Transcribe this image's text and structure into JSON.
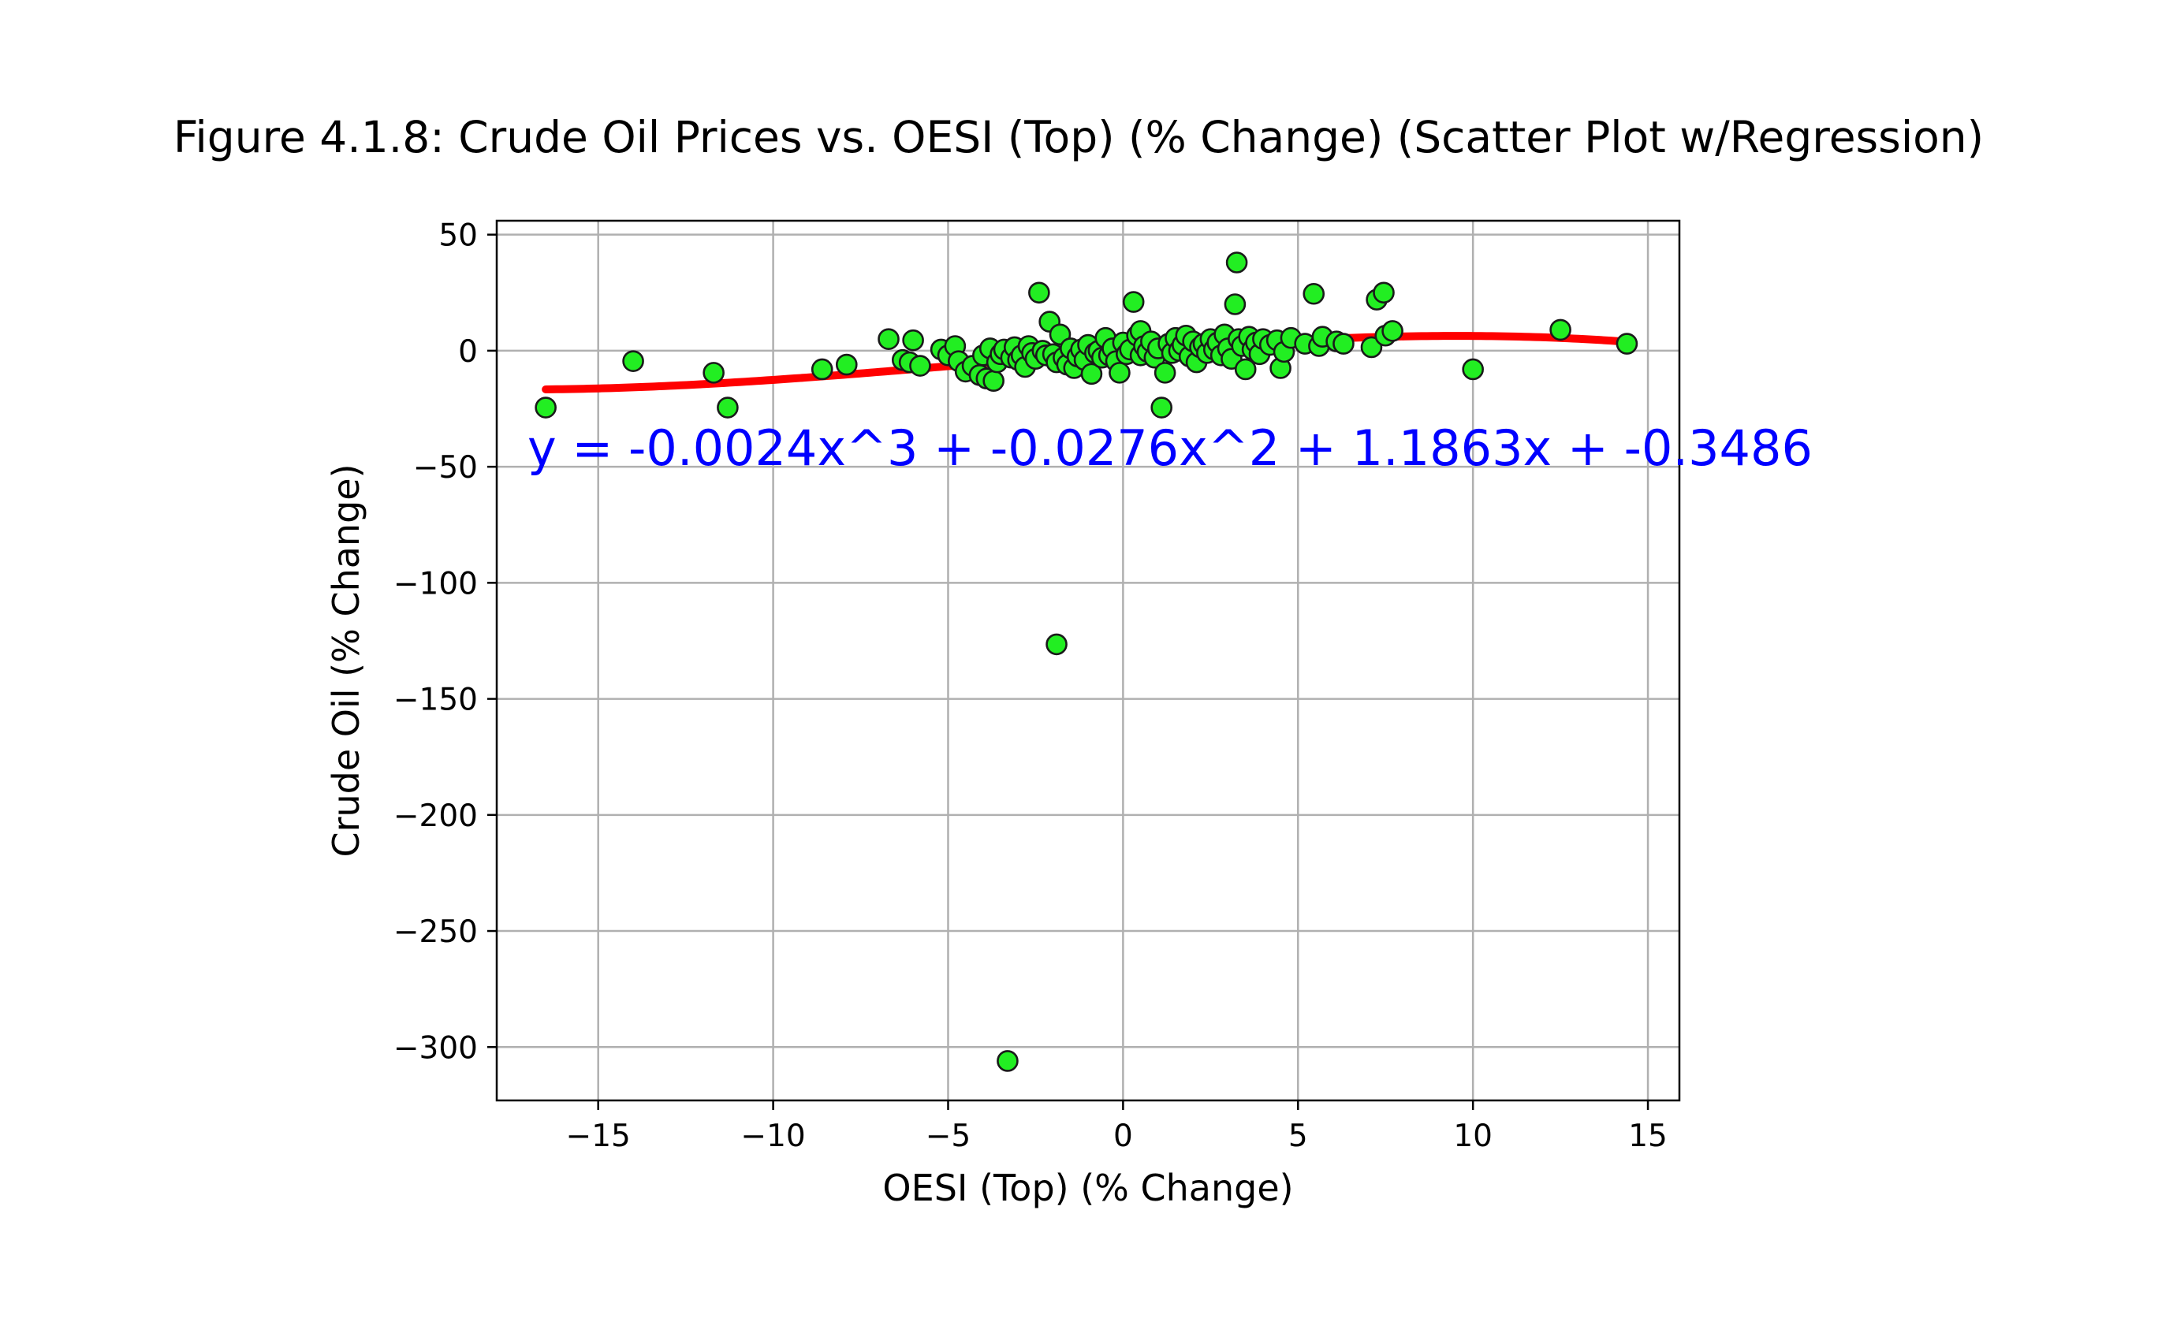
{
  "chart_data": {
    "type": "scatter",
    "title": "Figure 4.1.8: Crude Oil Prices vs. OESI (Top) (% Change) (Scatter Plot w/Regression)",
    "xlabel": "OESI (Top) (% Change)",
    "ylabel": "Crude Oil (% Change)",
    "xlim": [
      -17.9,
      15.9
    ],
    "ylim": [
      -323,
      56
    ],
    "xticks": [
      -15,
      -10,
      -5,
      0,
      5,
      10,
      15
    ],
    "yticks": [
      50,
      0,
      -50,
      -100,
      -150,
      -200,
      -250,
      -300
    ],
    "grid": true,
    "regression": {
      "equation": "y = -0.0024x^3 + -0.0276x^2 + 1.1863x + -0.3486",
      "coefficients": [
        -0.0024,
        -0.0276,
        1.1863,
        -0.3486
      ],
      "x_range": [
        -16.5,
        14.4
      ],
      "color": "#ff0000"
    },
    "marker_color": "#22ee22",
    "series": [
      {
        "points": [
          [
            -16.5,
            -24.5
          ],
          [
            -14.0,
            -4.5
          ],
          [
            -11.7,
            -9.5
          ],
          [
            -11.3,
            -24.5
          ],
          [
            -8.6,
            -8.0
          ],
          [
            -7.9,
            -6.0
          ],
          [
            -6.7,
            5.0
          ],
          [
            -6.3,
            -4.0
          ],
          [
            -6.1,
            -5.0
          ],
          [
            -6.0,
            4.5
          ],
          [
            -5.8,
            -6.5
          ],
          [
            -5.2,
            0.5
          ],
          [
            -5.0,
            -2.0
          ],
          [
            -4.8,
            2.0
          ],
          [
            -4.7,
            -4.5
          ],
          [
            -4.5,
            -9.0
          ],
          [
            -4.3,
            -6.5
          ],
          [
            -4.1,
            -10.5
          ],
          [
            -4.0,
            -2.0
          ],
          [
            -3.9,
            -12.0
          ],
          [
            -3.8,
            1.0
          ],
          [
            -3.7,
            -13.0
          ],
          [
            -3.6,
            -5.0
          ],
          [
            -3.5,
            -1.5
          ],
          [
            -3.4,
            0.5
          ],
          [
            -3.3,
            -306.0
          ],
          [
            -3.2,
            -3.0
          ],
          [
            -3.1,
            1.5
          ],
          [
            -3.0,
            -4.0
          ],
          [
            -2.9,
            -2.0
          ],
          [
            -2.8,
            -7.0
          ],
          [
            -2.7,
            2.0
          ],
          [
            -2.6,
            -1.0
          ],
          [
            -2.5,
            -3.5
          ],
          [
            -2.4,
            25.0
          ],
          [
            -2.3,
            0.0
          ],
          [
            -2.2,
            -2.0
          ],
          [
            -2.1,
            12.5
          ],
          [
            -2.0,
            -1.5
          ],
          [
            -1.9,
            -5.0
          ],
          [
            -1.9,
            -126.5
          ],
          [
            -1.8,
            7.0
          ],
          [
            -1.7,
            -3.0
          ],
          [
            -1.6,
            -6.0
          ],
          [
            -1.5,
            1.0
          ],
          [
            -1.4,
            -7.5
          ],
          [
            -1.3,
            -2.5
          ],
          [
            -1.2,
            0.5
          ],
          [
            -1.1,
            -4.0
          ],
          [
            -1.0,
            2.5
          ],
          [
            -0.9,
            -10.0
          ],
          [
            -0.8,
            -1.0
          ],
          [
            -0.7,
            0.0
          ],
          [
            -0.6,
            -3.0
          ],
          [
            -0.5,
            5.5
          ],
          [
            -0.4,
            -2.0
          ],
          [
            -0.3,
            1.0
          ],
          [
            -0.2,
            -4.5
          ],
          [
            -0.1,
            -9.5
          ],
          [
            0.0,
            3.5
          ],
          [
            0.1,
            -1.5
          ],
          [
            0.2,
            0.5
          ],
          [
            0.3,
            21.0
          ],
          [
            0.4,
            6.5
          ],
          [
            0.5,
            -2.0
          ],
          [
            0.5,
            8.5
          ],
          [
            0.6,
            2.0
          ],
          [
            0.7,
            -0.5
          ],
          [
            0.8,
            4.0
          ],
          [
            0.9,
            -3.0
          ],
          [
            1.0,
            1.0
          ],
          [
            1.1,
            -24.5
          ],
          [
            1.2,
            -9.5
          ],
          [
            1.3,
            3.0
          ],
          [
            1.4,
            -1.0
          ],
          [
            1.5,
            5.5
          ],
          [
            1.6,
            0.0
          ],
          [
            1.7,
            2.5
          ],
          [
            1.8,
            6.5
          ],
          [
            1.9,
            -2.5
          ],
          [
            2.0,
            4.0
          ],
          [
            2.1,
            -5.0
          ],
          [
            2.2,
            1.5
          ],
          [
            2.3,
            3.0
          ],
          [
            2.4,
            -1.0
          ],
          [
            2.5,
            5.0
          ],
          [
            2.6,
            0.5
          ],
          [
            2.7,
            3.5
          ],
          [
            2.8,
            -2.0
          ],
          [
            2.9,
            7.0
          ],
          [
            3.0,
            1.0
          ],
          [
            3.1,
            -3.5
          ],
          [
            3.2,
            20.0
          ],
          [
            3.25,
            38.0
          ],
          [
            3.3,
            5.0
          ],
          [
            3.4,
            2.0
          ],
          [
            3.5,
            -8.0
          ],
          [
            3.6,
            6.0
          ],
          [
            3.7,
            0.5
          ],
          [
            3.8,
            3.5
          ],
          [
            3.9,
            -1.5
          ],
          [
            4.0,
            5.0
          ],
          [
            4.2,
            2.5
          ],
          [
            4.4,
            4.5
          ],
          [
            4.5,
            -7.5
          ],
          [
            4.6,
            -0.5
          ],
          [
            4.8,
            5.5
          ],
          [
            5.2,
            3.0
          ],
          [
            5.45,
            24.5
          ],
          [
            5.6,
            2.0
          ],
          [
            5.7,
            6.0
          ],
          [
            6.1,
            4.0
          ],
          [
            6.3,
            3.0
          ],
          [
            7.1,
            1.5
          ],
          [
            7.25,
            22.0
          ],
          [
            7.45,
            25.0
          ],
          [
            7.5,
            6.5
          ],
          [
            7.7,
            8.5
          ],
          [
            10.0,
            -8.0
          ],
          [
            12.5,
            9.0
          ],
          [
            14.4,
            3.0
          ]
        ]
      }
    ]
  }
}
